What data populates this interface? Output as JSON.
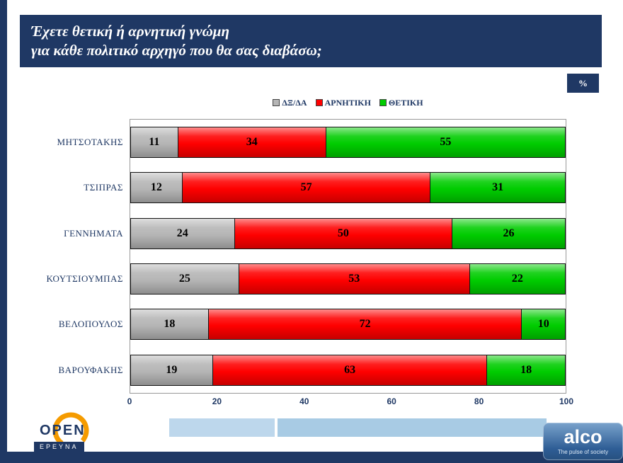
{
  "title": {
    "line1": "Έχετε θετική ή αρνητική γνώμη",
    "line2": "για κάθε πολιτικό αρχηγό που θα σας διαβάσω;"
  },
  "percent_badge": "%",
  "colors": {
    "navy": "#1f3864",
    "footer_bar_left": "#bdd7ec",
    "footer_bar_right": "#a8cbe4"
  },
  "chart_data": {
    "type": "bar",
    "orientation": "horizontal",
    "stacked": true,
    "title": "Έχετε θετική ή αρνητική γνώμη για κάθε πολιτικό αρχηγό που θα σας διαβάσω;",
    "unit": "%",
    "categories": [
      "ΜΗΤΣΟΤΑΚΗΣ",
      "ΤΣΙΠΡΑΣ",
      "ΓΕΝΝΗΜΑΤΑ",
      "ΚΟΥΤΣΙΟΥΜΠΑΣ",
      "ΒΕΛΟΠΟΥΛΟΣ",
      "ΒΑΡΟΥΦΑΚΗΣ"
    ],
    "series": [
      {
        "name": "ΔΞ/ΔΑ",
        "key": "dk-da",
        "color": "#b5b5b5",
        "values": [
          11,
          12,
          24,
          25,
          18,
          19
        ]
      },
      {
        "name": "ΑΡΝΗΤΙΚΗ",
        "key": "negative",
        "color": "#fe0000",
        "values": [
          34,
          57,
          50,
          53,
          72,
          63
        ]
      },
      {
        "name": "ΘΕΤΙΚΗ",
        "key": "positive",
        "color": "#00cc00",
        "values": [
          55,
          31,
          26,
          22,
          10,
          18
        ]
      }
    ],
    "x_ticks": [
      "0",
      "20",
      "40",
      "60",
      "80",
      "100"
    ],
    "xlim": [
      0,
      100
    ],
    "legend_position": "top",
    "grid": false
  },
  "footer": {
    "open_logo": {
      "text": "OPEN",
      "subtext": "ΕΡΕΥΝΑ"
    },
    "alco_logo": {
      "text": "alco",
      "tagline": "The pulse of society"
    }
  }
}
